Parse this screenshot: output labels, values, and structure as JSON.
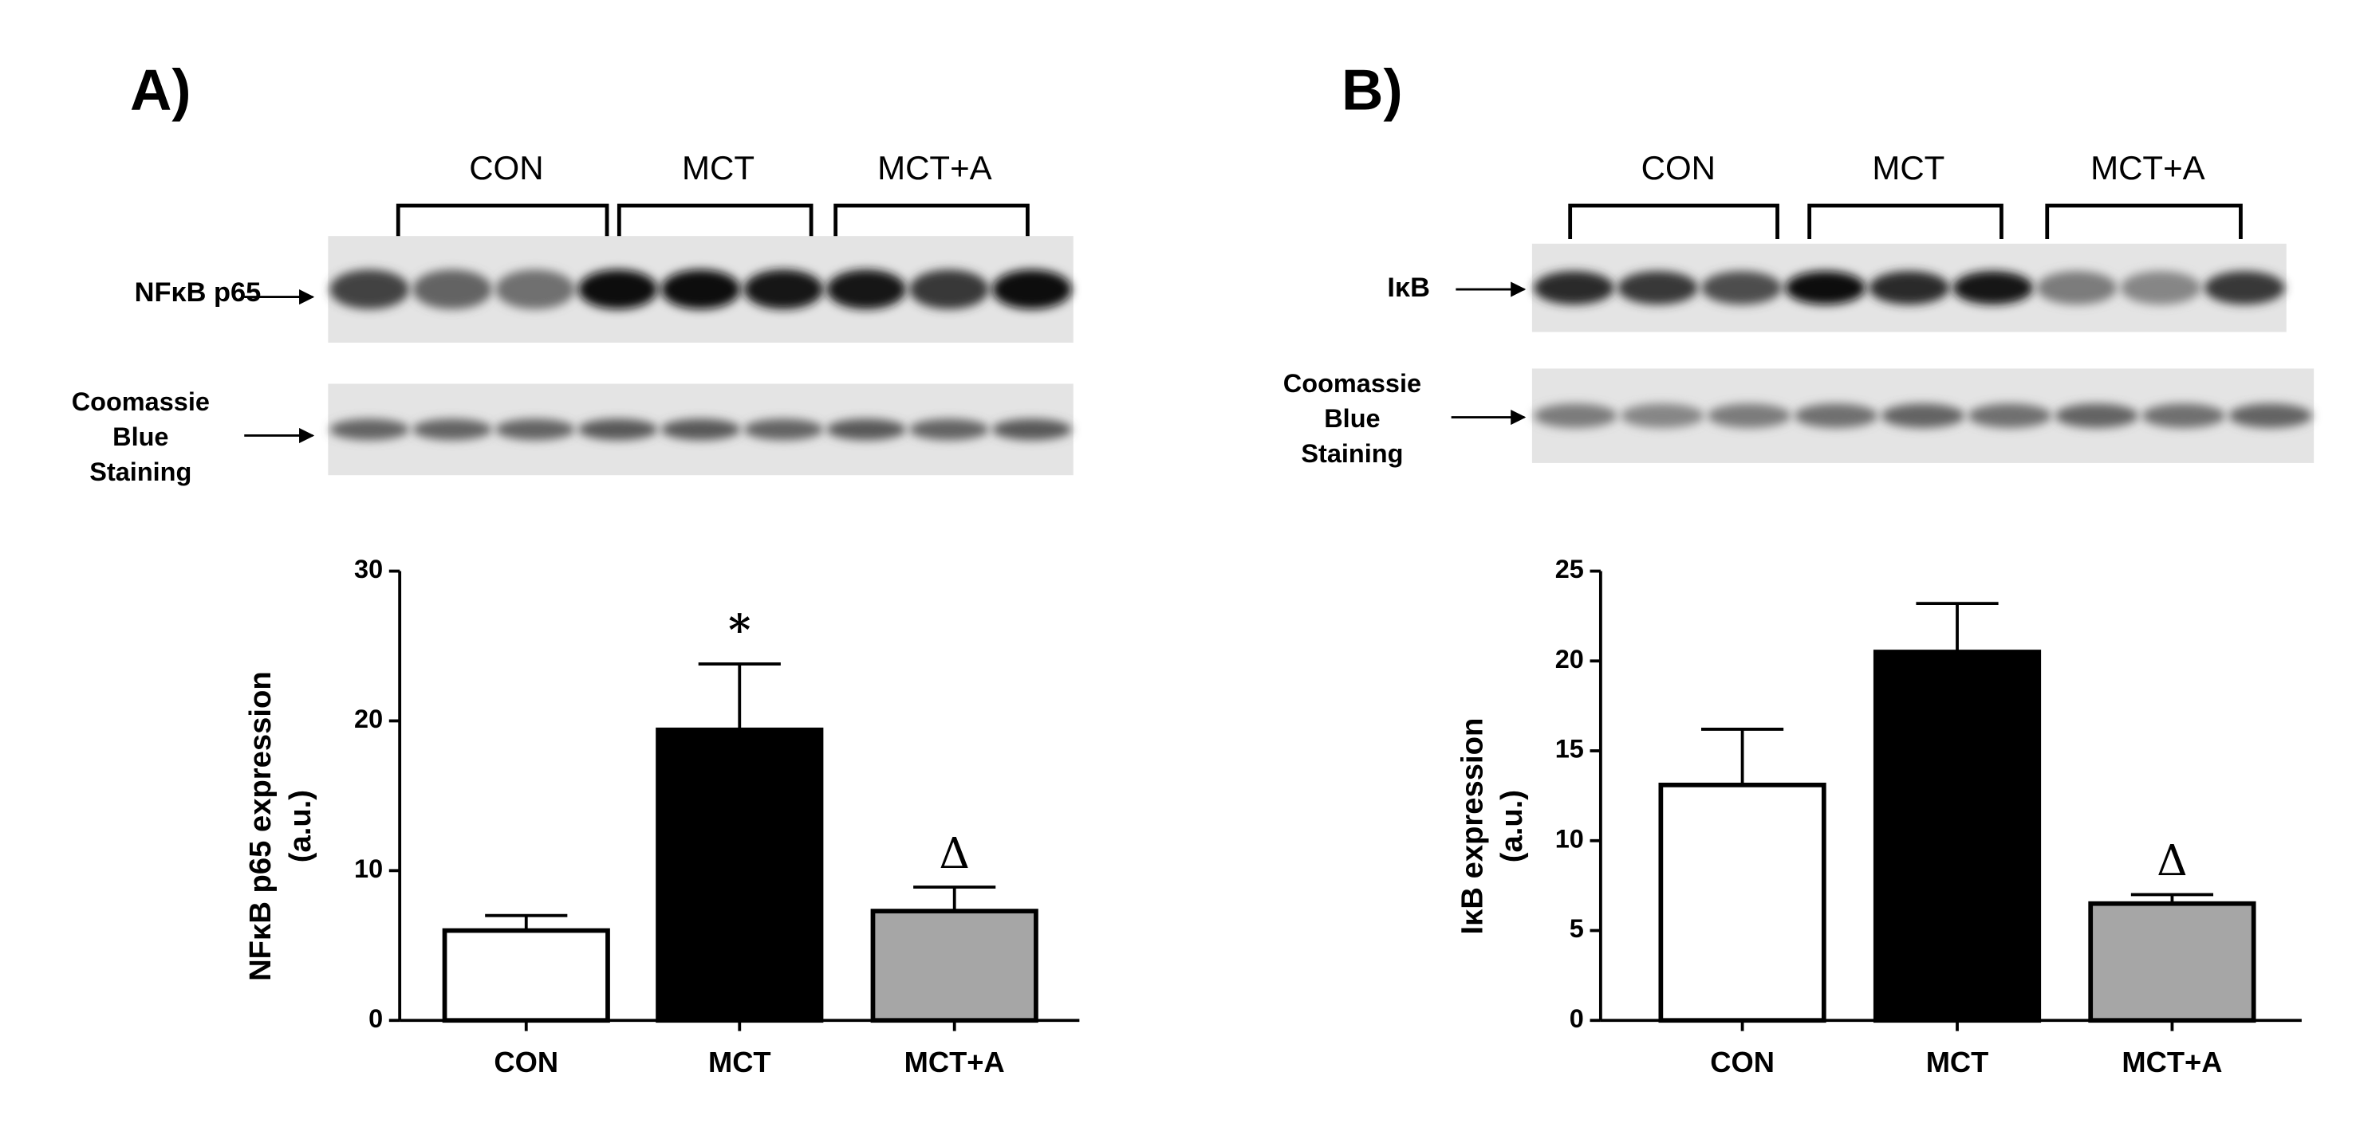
{
  "chart_data": [
    {
      "type": "bar",
      "panel_label": "A)",
      "blot_groups": [
        "CON",
        "MCT",
        "MCT+A"
      ],
      "blot_labels": [
        [
          "NFκB p65"
        ],
        [
          "Coomassie",
          "Blue",
          "Staining"
        ]
      ],
      "y_label": [
        "NFκB p65 expression",
        "(a.u.)"
      ],
      "categories": [
        "CON",
        "MCT",
        "MCT+A"
      ],
      "values": [
        6,
        19.4,
        7.3
      ],
      "errors": [
        1.0,
        4.4,
        1.6
      ],
      "colors": [
        "#ffffff",
        "#000000",
        "#a6a6a6"
      ],
      "ylim": [
        0,
        30
      ],
      "yticks": [
        0,
        10,
        20,
        30
      ],
      "annotations": [
        {
          "text": "*",
          "category": "MCT"
        },
        {
          "text": "Δ",
          "category": "MCT+A"
        }
      ]
    },
    {
      "type": "bar",
      "panel_label": "B)",
      "blot_groups": [
        "CON",
        "MCT",
        "MCT+A"
      ],
      "blot_labels": [
        [
          "IκB"
        ],
        [
          "Coomassie",
          "Blue",
          "Staining"
        ]
      ],
      "y_label": [
        "IκB expression",
        "(a.u.)"
      ],
      "categories": [
        "CON",
        "MCT",
        "MCT+A"
      ],
      "values": [
        13.1,
        20.5,
        6.5
      ],
      "errors": [
        3.1,
        2.7,
        0.5
      ],
      "colors": [
        "#ffffff",
        "#000000",
        "#a6a6a6"
      ],
      "ylim": [
        0,
        25
      ],
      "yticks": [
        0,
        5,
        10,
        15,
        20,
        25
      ],
      "annotations": [
        {
          "text": "Δ",
          "category": "MCT+A"
        }
      ]
    }
  ]
}
